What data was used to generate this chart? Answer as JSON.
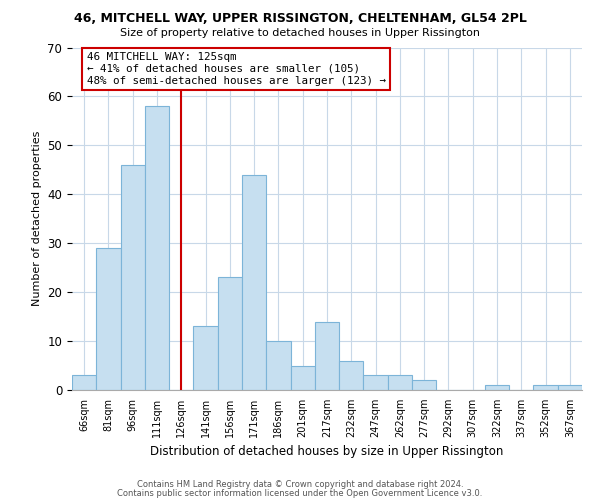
{
  "title1": "46, MITCHELL WAY, UPPER RISSINGTON, CHELTENHAM, GL54 2PL",
  "title2": "Size of property relative to detached houses in Upper Rissington",
  "xlabel": "Distribution of detached houses by size in Upper Rissington",
  "ylabel": "Number of detached properties",
  "bar_color": "#c6dff0",
  "bar_edge_color": "#7cb4d8",
  "categories": [
    "66sqm",
    "81sqm",
    "96sqm",
    "111sqm",
    "126sqm",
    "141sqm",
    "156sqm",
    "171sqm",
    "186sqm",
    "201sqm",
    "217sqm",
    "232sqm",
    "247sqm",
    "262sqm",
    "277sqm",
    "292sqm",
    "307sqm",
    "322sqm",
    "337sqm",
    "352sqm",
    "367sqm"
  ],
  "values": [
    3,
    29,
    46,
    58,
    0,
    13,
    23,
    44,
    10,
    5,
    14,
    6,
    3,
    3,
    2,
    0,
    0,
    1,
    0,
    1,
    1
  ],
  "ylim": [
    0,
    70
  ],
  "yticks": [
    0,
    10,
    20,
    30,
    40,
    50,
    60,
    70
  ],
  "vline_x_index": 4,
  "vline_color": "#cc0000",
  "annotation_text": "46 MITCHELL WAY: 125sqm\n← 41% of detached houses are smaller (105)\n48% of semi-detached houses are larger (123) →",
  "annotation_box_color": "#ffffff",
  "annotation_box_edge": "#cc0000",
  "footer1": "Contains HM Land Registry data © Crown copyright and database right 2024.",
  "footer2": "Contains public sector information licensed under the Open Government Licence v3.0.",
  "background_color": "#ffffff",
  "grid_color": "#c8d8e8"
}
